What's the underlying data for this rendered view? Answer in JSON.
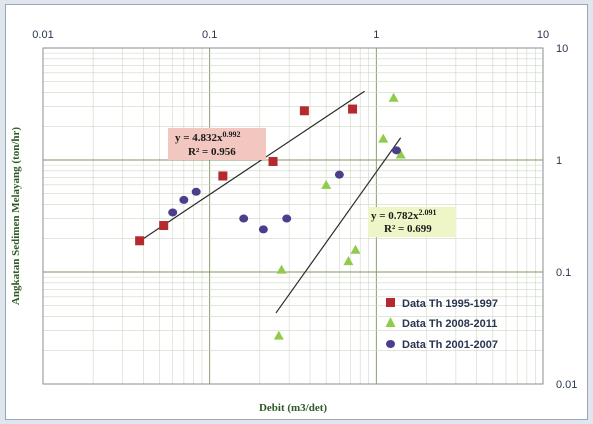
{
  "chart_data": {
    "type": "scatter",
    "xscale": "log",
    "yscale": "log",
    "xlim": [
      0.01,
      10
    ],
    "ylim": [
      0.01,
      10
    ],
    "x_ticks": [
      "0.01",
      "0.1",
      "1",
      "10"
    ],
    "y_ticks": [
      "10",
      "1",
      "0.1",
      "0.01"
    ],
    "xlabel": "Debit (m3/det)",
    "ylabel": "Angkatan Sedimen Melayang (ton/hr)",
    "grid": true,
    "legend_position": "bottom-right",
    "series": [
      {
        "name": "Data Th 1995-1997",
        "marker": "square",
        "color": "#b52a2e",
        "x": [
          0.038,
          0.053,
          0.12,
          0.24,
          0.37,
          0.72
        ],
        "y": [
          0.19,
          0.26,
          0.72,
          0.97,
          2.75,
          2.85
        ]
      },
      {
        "name": "Data Th 2008-2011",
        "marker": "triangle",
        "color": "#8fcc4a",
        "x": [
          0.26,
          0.27,
          0.5,
          0.68,
          0.75,
          1.1,
          1.27,
          1.4
        ],
        "y": [
          0.027,
          0.105,
          0.6,
          0.125,
          0.158,
          1.55,
          3.6,
          1.12
        ]
      },
      {
        "name": "Data Th 2001-2007",
        "marker": "circle",
        "color": "#4b3f8c",
        "x": [
          0.06,
          0.07,
          0.083,
          0.16,
          0.21,
          0.29,
          0.6,
          1.32
        ],
        "y": [
          0.34,
          0.44,
          0.52,
          0.3,
          0.24,
          0.3,
          0.74,
          1.22
        ]
      }
    ],
    "trendlines": [
      {
        "series": "Data Th 1995-1997",
        "coef": 4.832,
        "exponent": 0.992,
        "x_range": [
          0.038,
          0.85
        ],
        "equation": "y = 4.832x",
        "exponent_label": "0.992",
        "r2": "R² = 0.956",
        "box_color": "#f2c7c0"
      },
      {
        "series": "Data Th 2008-2011",
        "coef": 0.782,
        "exponent": 2.091,
        "x_range": [
          0.25,
          1.4
        ],
        "equation": "y = 0.782x",
        "exponent_label": "2.091",
        "r2": "R² = 0.699",
        "box_color": "#eef6c8"
      }
    ]
  }
}
